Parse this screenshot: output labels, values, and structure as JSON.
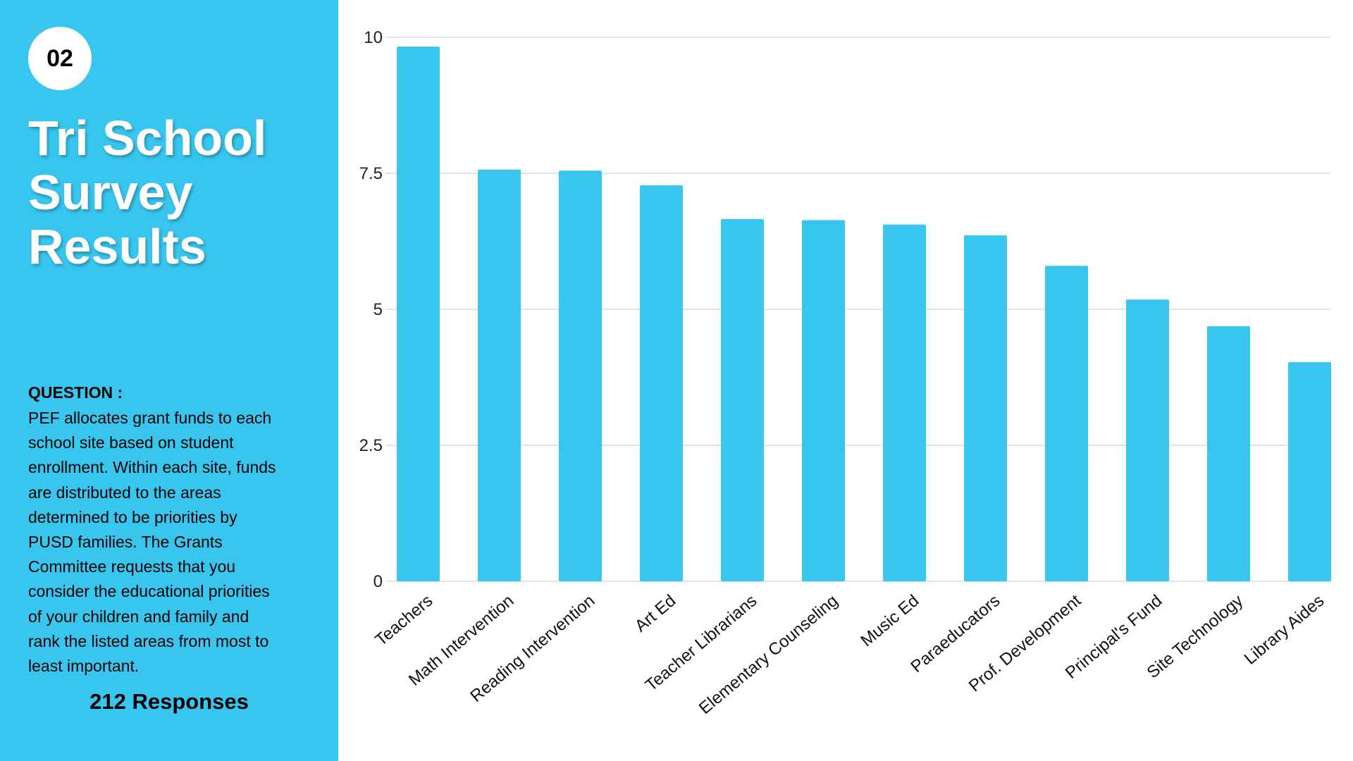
{
  "badge": "02",
  "title_lines": [
    "Tri School",
    "Survey",
    "Results"
  ],
  "question_label": "QUESTION :",
  "question_lines": [
    "PEF allocates grant funds to each",
    "school site based on student",
    "enrollment. Within each site, funds",
    "are distributed to the areas",
    "determined to be priorities by",
    "PUSD families. The Grants",
    "Committee requests that you",
    "consider the educational priorities",
    "of your children and family and",
    "rank the listed areas from most to",
    "least important."
  ],
  "responses": "212 Responses",
  "colors": {
    "accent": "#38c6ef",
    "bar": "#38c6ef",
    "grid": "#d9d9d9"
  },
  "chart_data": {
    "type": "bar",
    "title": "",
    "xlabel": "",
    "ylabel": "",
    "categories": [
      "Teachers",
      "Math Intervention",
      "Reading Intervention",
      "Art Ed",
      "Teacher Librarians",
      "Elementary Counseling",
      "Music Ed",
      "Paraeducators",
      "Prof. Development",
      "Principal's Fund",
      "Site Technology",
      "Library Aides"
    ],
    "values": [
      9.83,
      7.57,
      7.55,
      7.28,
      6.66,
      6.64,
      6.56,
      6.36,
      5.8,
      5.18,
      4.69,
      4.03
    ],
    "ylim": [
      0,
      10
    ],
    "yticks": [
      "0",
      "2.5",
      "5",
      "7.5",
      "10"
    ],
    "grid": true,
    "legend": "none"
  }
}
